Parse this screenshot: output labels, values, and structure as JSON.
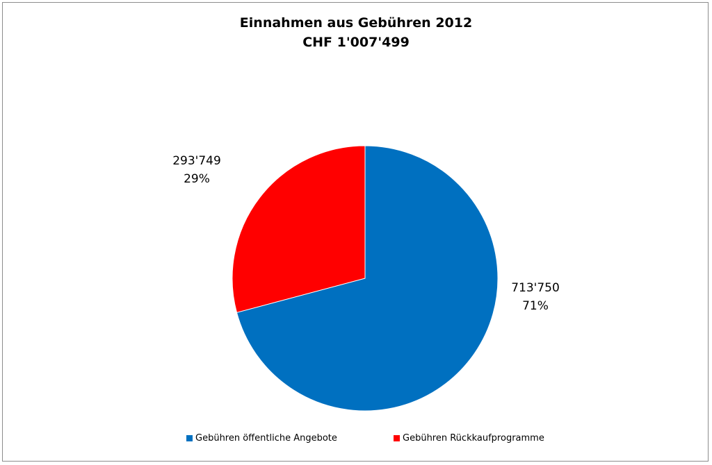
{
  "chart_data": {
    "type": "pie",
    "title": "Einnahmen aus Gebühren 2012",
    "subtitle": "CHF 1'007'499",
    "slices": [
      {
        "name": "Gebühren öffentliche Angebote",
        "value": 713750,
        "value_label": "713'750",
        "percent_label": "71%",
        "color": "#0070c0"
      },
      {
        "name": "Gebühren Rückkaufprogramme",
        "value": 293749,
        "value_label": "293'749",
        "percent_label": "29%",
        "color": "#ff0000"
      }
    ],
    "legend_position": "bottom"
  }
}
